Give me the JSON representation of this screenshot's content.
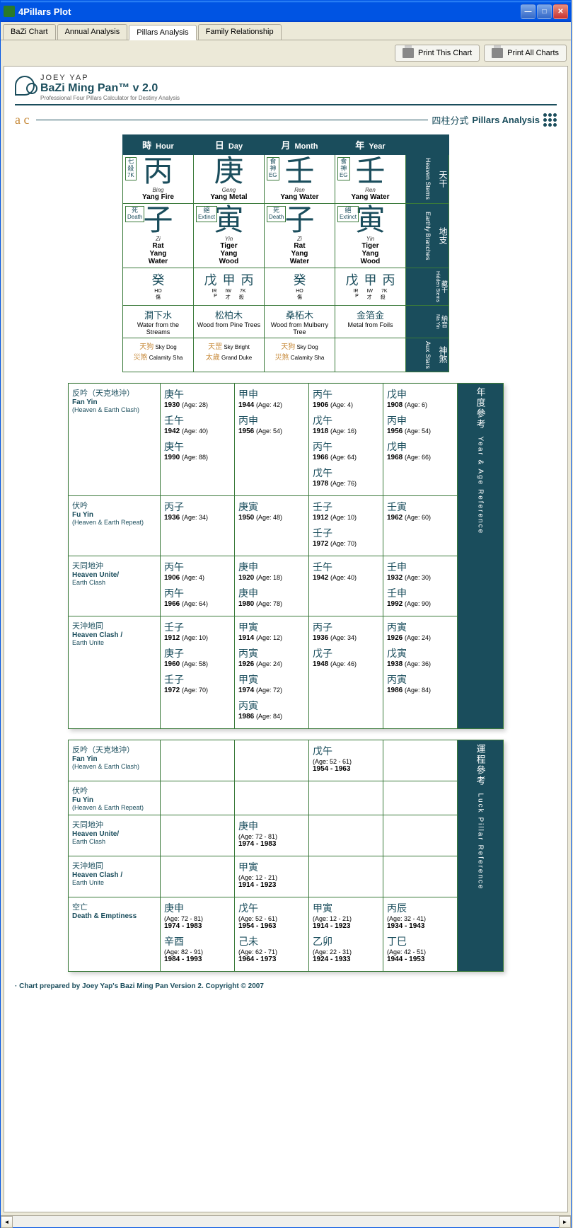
{
  "window": {
    "title": "4Pillars Plot"
  },
  "tabs": [
    "BaZi Chart",
    "Annual Analysis",
    "Pillars Analysis",
    "Family Relationship"
  ],
  "active_tab": 2,
  "toolbar": {
    "print_chart": "Print This Chart",
    "print_all": "Print All Charts"
  },
  "header": {
    "brand": "JOEY YAP",
    "product": "BaZi Ming Pan™ v 2.0",
    "sub": "Professional Four Pillars Calculator for Destiny Analysis"
  },
  "section": {
    "ac": "a c",
    "cn": "四柱分式",
    "en": "Pillars Analysis"
  },
  "pillar_headers": [
    {
      "cn": "時",
      "en": "Hour"
    },
    {
      "cn": "日",
      "en": "Day"
    },
    {
      "cn": "月",
      "en": "Month"
    },
    {
      "cn": "年",
      "en": "Year"
    }
  ],
  "side_labels": [
    {
      "cn": "天干",
      "en": "Heaven Stems"
    },
    {
      "cn": "地支",
      "en": "Earthly Branches"
    },
    {
      "cn": "藏干",
      "en": "Hidden Stems"
    },
    {
      "cn": "納音",
      "en": "Na Yin"
    },
    {
      "cn": "神煞",
      "en": "Aux Stars"
    }
  ],
  "stems": [
    {
      "badge_cn": "七殺",
      "badge_en": "7K",
      "char": "丙",
      "pinyin": "Bing",
      "el": "Yang Fire"
    },
    {
      "badge_cn": "",
      "badge_en": "",
      "char": "庚",
      "pinyin": "Geng",
      "el": "Yang Metal"
    },
    {
      "badge_cn": "食神",
      "badge_en": "EG",
      "char": "壬",
      "pinyin": "Ren",
      "el": "Yang Water"
    },
    {
      "badge_cn": "食神",
      "badge_en": "EG",
      "char": "壬",
      "pinyin": "Ren",
      "el": "Yang Water"
    }
  ],
  "branches": [
    {
      "badge_cn": "死",
      "badge_en": "Death",
      "char": "子",
      "pinyin": "Zi",
      "animal": "Rat",
      "el": "Yang",
      "el2": "Water"
    },
    {
      "badge_cn": "絕",
      "badge_en": "Extinct",
      "char": "寅",
      "pinyin": "Yin",
      "animal": "Tiger",
      "el": "Yang",
      "el2": "Wood"
    },
    {
      "badge_cn": "死",
      "badge_en": "Death",
      "char": "子",
      "pinyin": "Zi",
      "animal": "Rat",
      "el": "Yang",
      "el2": "Water"
    },
    {
      "badge_cn": "絕",
      "badge_en": "Extinct",
      "char": "寅",
      "pinyin": "Yin",
      "animal": "Tiger",
      "el": "Yang",
      "el2": "Wood"
    }
  ],
  "hidden": [
    {
      "chars": [
        "癸"
      ],
      "codes": [
        "HO"
      ],
      "sub": [
        "傷"
      ]
    },
    {
      "chars": [
        "戊",
        "甲",
        "丙"
      ],
      "codes": [
        "IR",
        "IW",
        "7K"
      ],
      "sub": [
        "P",
        "才",
        "殺"
      ]
    },
    {
      "chars": [
        "癸"
      ],
      "codes": [
        "HO"
      ],
      "sub": [
        "傷"
      ]
    },
    {
      "chars": [
        "戊",
        "甲",
        "丙"
      ],
      "codes": [
        "IR",
        "IW",
        "7K"
      ],
      "sub": [
        "P",
        "才",
        "殺"
      ]
    }
  ],
  "nayin": [
    {
      "cn": "澗下水",
      "en": "Water from the Streams"
    },
    {
      "cn": "松柏木",
      "en": "Wood from Pine Trees"
    },
    {
      "cn": "桑柘木",
      "en": "Wood from Mulberry Tree"
    },
    {
      "cn": "金箔金",
      "en": "Metal from Foils"
    }
  ],
  "aux": [
    [
      {
        "cn": "天狗",
        "en": "Sky Dog"
      },
      {
        "cn": "災煞",
        "en": "Calamity Sha"
      }
    ],
    [
      {
        "cn": "天罡",
        "en": "Sky Bright"
      },
      {
        "cn": "太歲",
        "en": "Grand Duke"
      }
    ],
    [
      {
        "cn": "天狗",
        "en": "Sky Dog"
      },
      {
        "cn": "災煞",
        "en": "Calamity Sha"
      }
    ],
    []
  ],
  "year_ref_side": {
    "cn": "年度參考",
    "en": "Year & Age Reference"
  },
  "year_ref_rows": [
    {
      "cn": "反吟（天克地沖）",
      "en": "Fan Yin",
      "sub": "(Heaven & Earth Clash)",
      "cells": [
        [
          {
            "cn": "庚午",
            "yr": "1930",
            "age": "28"
          },
          {
            "cn": "壬午",
            "yr": "1942",
            "age": "40"
          },
          {
            "cn": "庚午",
            "yr": "1990",
            "age": "88"
          }
        ],
        [
          {
            "cn": "甲申",
            "yr": "1944",
            "age": "42"
          },
          {
            "cn": "丙申",
            "yr": "1956",
            "age": "54"
          }
        ],
        [
          {
            "cn": "丙午",
            "yr": "1906",
            "age": "4"
          },
          {
            "cn": "戊午",
            "yr": "1918",
            "age": "16"
          },
          {
            "cn": "丙午",
            "yr": "1966",
            "age": "64"
          },
          {
            "cn": "戊午",
            "yr": "1978",
            "age": "76"
          }
        ],
        [
          {
            "cn": "戊申",
            "yr": "1908",
            "age": "6"
          },
          {
            "cn": "丙申",
            "yr": "1956",
            "age": "54"
          },
          {
            "cn": "戊申",
            "yr": "1968",
            "age": "66"
          }
        ]
      ]
    },
    {
      "cn": "伏吟",
      "en": "Fu Yin",
      "sub": "(Heaven & Earth Repeat)",
      "cells": [
        [
          {
            "cn": "丙子",
            "yr": "1936",
            "age": "34"
          }
        ],
        [
          {
            "cn": "庚寅",
            "yr": "1950",
            "age": "48"
          }
        ],
        [
          {
            "cn": "壬子",
            "yr": "1912",
            "age": "10"
          },
          {
            "cn": "壬子",
            "yr": "1972",
            "age": "70"
          }
        ],
        [
          {
            "cn": "壬寅",
            "yr": "1962",
            "age": "60"
          }
        ]
      ]
    },
    {
      "cn": "天同地沖",
      "en": "Heaven Unite/",
      "sub": "Earth Clash",
      "cells": [
        [
          {
            "cn": "丙午",
            "yr": "1906",
            "age": "4"
          },
          {
            "cn": "丙午",
            "yr": "1966",
            "age": "64"
          }
        ],
        [
          {
            "cn": "庚申",
            "yr": "1920",
            "age": "18"
          },
          {
            "cn": "庚申",
            "yr": "1980",
            "age": "78"
          }
        ],
        [
          {
            "cn": "壬午",
            "yr": "1942",
            "age": "40"
          }
        ],
        [
          {
            "cn": "壬申",
            "yr": "1932",
            "age": "30"
          },
          {
            "cn": "壬申",
            "yr": "1992",
            "age": "90"
          }
        ]
      ]
    },
    {
      "cn": "天沖地同",
      "en": "Heaven Clash /",
      "sub": "Earth Unite",
      "cells": [
        [
          {
            "cn": "壬子",
            "yr": "1912",
            "age": "10"
          },
          {
            "cn": "庚子",
            "yr": "1960",
            "age": "58"
          },
          {
            "cn": "壬子",
            "yr": "1972",
            "age": "70"
          }
        ],
        [
          {
            "cn": "甲寅",
            "yr": "1914",
            "age": "12"
          },
          {
            "cn": "丙寅",
            "yr": "1926",
            "age": "24"
          },
          {
            "cn": "甲寅",
            "yr": "1974",
            "age": "72"
          },
          {
            "cn": "丙寅",
            "yr": "1986",
            "age": "84"
          }
        ],
        [
          {
            "cn": "丙子",
            "yr": "1936",
            "age": "34"
          },
          {
            "cn": "戊子",
            "yr": "1948",
            "age": "46"
          }
        ],
        [
          {
            "cn": "丙寅",
            "yr": "1926",
            "age": "24"
          },
          {
            "cn": "戊寅",
            "yr": "1938",
            "age": "36"
          },
          {
            "cn": "丙寅",
            "yr": "1986",
            "age": "84"
          }
        ]
      ]
    }
  ],
  "luck_ref_side": {
    "cn": "運程參考",
    "en": "Luck Pillar Reference"
  },
  "luck_ref_rows": [
    {
      "cn": "反吟（天克地沖）",
      "en": "Fan Yin",
      "sub": "(Heaven & Earth Clash)",
      "cells": [
        [],
        [],
        [
          {
            "cn": "戊午",
            "age": "52 - 61",
            "range": "1954 - 1963"
          }
        ],
        []
      ]
    },
    {
      "cn": "伏吟",
      "en": "Fu Yin",
      "sub": "(Heaven & Earth Repeat)",
      "cells": [
        [],
        [],
        [],
        []
      ]
    },
    {
      "cn": "天同地沖",
      "en": "Heaven Unite/",
      "sub": "Earth Clash",
      "cells": [
        [],
        [
          {
            "cn": "庚申",
            "age": "72 - 81",
            "range": "1974 - 1983"
          }
        ],
        [],
        []
      ]
    },
    {
      "cn": "天沖地同",
      "en": "Heaven Clash /",
      "sub": "Earth Unite",
      "cells": [
        [],
        [
          {
            "cn": "甲寅",
            "age": "12 - 21",
            "range": "1914 - 1923"
          }
        ],
        [],
        []
      ]
    },
    {
      "cn": "空亡",
      "en": "Death & Emptiness",
      "sub": "",
      "cells": [
        [
          {
            "cn": "庚申",
            "age": "72 - 81",
            "range": "1974 - 1983"
          },
          {
            "cn": "辛酉",
            "age": "82 - 91",
            "range": "1984 - 1993"
          }
        ],
        [
          {
            "cn": "戊午",
            "age": "52 - 61",
            "range": "1954 - 1963"
          },
          {
            "cn": "己未",
            "age": "62 - 71",
            "range": "1964 - 1973"
          }
        ],
        [
          {
            "cn": "甲寅",
            "age": "12 - 21",
            "range": "1914 - 1923"
          },
          {
            "cn": "乙卯",
            "age": "22 - 31",
            "range": "1924 - 1933"
          }
        ],
        [
          {
            "cn": "丙辰",
            "age": "32 - 41",
            "range": "1934 - 1943"
          },
          {
            "cn": "丁巳",
            "age": "42 - 51",
            "range": "1944 - 1953"
          }
        ]
      ]
    }
  ],
  "footer": "· Chart prepared by Joey Yap's Bazi Ming Pan Version 2. Copyright © 2007"
}
